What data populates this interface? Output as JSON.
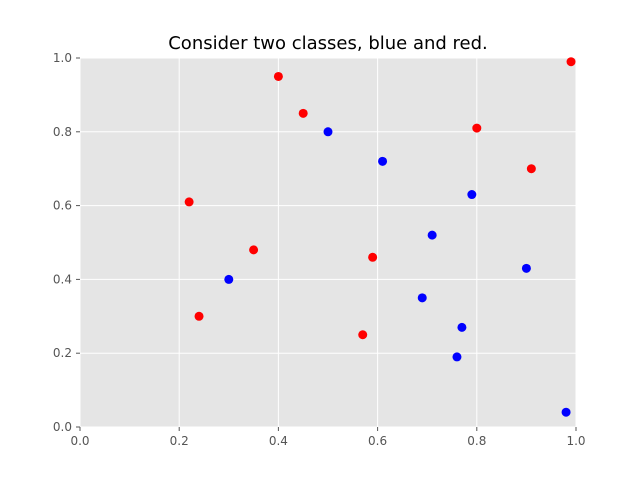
{
  "chart_data": {
    "type": "scatter",
    "title": "Consider two classes, blue and red.",
    "xlabel": "",
    "ylabel": "",
    "xlim": [
      0.0,
      1.0
    ],
    "ylim": [
      0.0,
      1.0
    ],
    "grid": true,
    "style": "ggplot",
    "x_ticks": [
      "0.0",
      "0.2",
      "0.4",
      "0.6",
      "0.8",
      "1.0"
    ],
    "y_ticks": [
      "0.0",
      "0.2",
      "0.4",
      "0.6",
      "0.8",
      "1.0"
    ],
    "series": [
      {
        "color": "#ff0000",
        "points": [
          {
            "x": 0.22,
            "y": 0.61
          },
          {
            "x": 0.24,
            "y": 0.3
          },
          {
            "x": 0.35,
            "y": 0.48
          },
          {
            "x": 0.4,
            "y": 0.95
          },
          {
            "x": 0.45,
            "y": 0.85
          },
          {
            "x": 0.57,
            "y": 0.25
          },
          {
            "x": 0.59,
            "y": 0.46
          },
          {
            "x": 0.8,
            "y": 0.81
          },
          {
            "x": 0.91,
            "y": 0.7
          },
          {
            "x": 0.99,
            "y": 0.99
          }
        ]
      },
      {
        "color": "#0000ff",
        "points": [
          {
            "x": 0.3,
            "y": 0.4
          },
          {
            "x": 0.5,
            "y": 0.8
          },
          {
            "x": 0.61,
            "y": 0.72
          },
          {
            "x": 0.69,
            "y": 0.35
          },
          {
            "x": 0.71,
            "y": 0.52
          },
          {
            "x": 0.76,
            "y": 0.19
          },
          {
            "x": 0.77,
            "y": 0.27
          },
          {
            "x": 0.79,
            "y": 0.63
          },
          {
            "x": 0.9,
            "y": 0.43
          },
          {
            "x": 0.98,
            "y": 0.04
          }
        ]
      }
    ]
  },
  "colors": {
    "plot_background": "#e5e5e5",
    "grid": "#ffffff",
    "tick_label": "#555555",
    "title": "#000000"
  }
}
